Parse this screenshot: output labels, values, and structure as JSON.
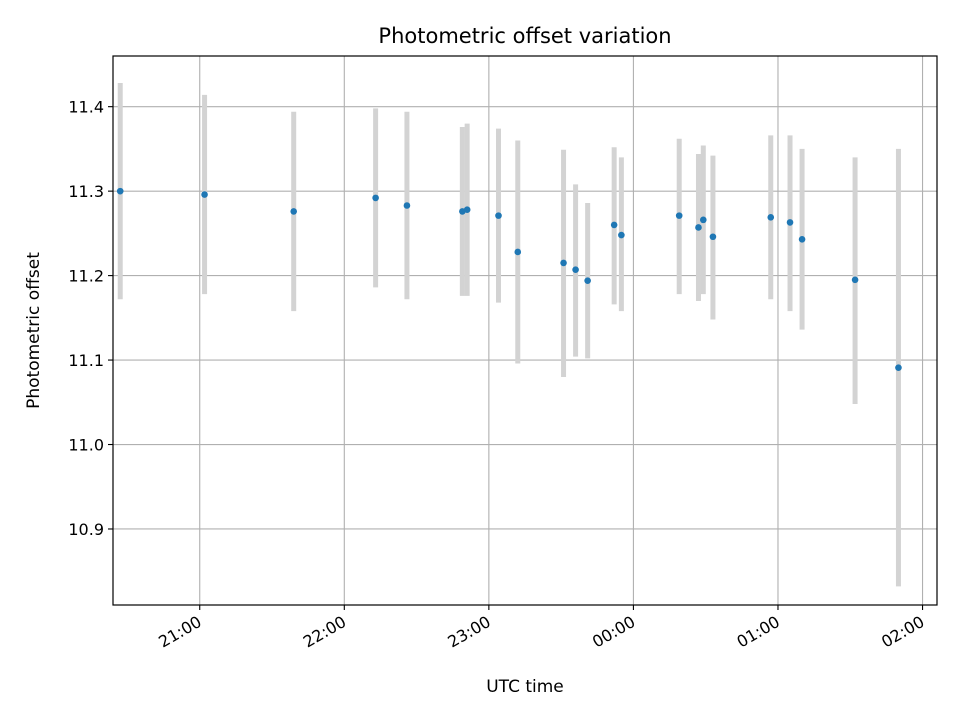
{
  "chart_data": {
    "type": "scatter",
    "title": "Photometric offset variation",
    "xlabel": "UTC time",
    "ylabel": "Photometric offset",
    "x_ticks": [
      "21:00",
      "22:00",
      "23:00",
      "00:00",
      "01:00",
      "02:00"
    ],
    "y_ticks": [
      "10.9",
      "11.0",
      "11.1",
      "11.2",
      "11.3",
      "11.4"
    ],
    "xlim": [
      "20:24",
      "02:06"
    ],
    "ylim": [
      10.81,
      11.46
    ],
    "grid": true,
    "legend": "none",
    "colors": {
      "point": "#1f77b4",
      "errorbar": "#d3d3d3",
      "grid": "#b0b0b0"
    },
    "series": [
      {
        "points": [
          {
            "x": "20:27",
            "y": 11.3,
            "lo": 11.172,
            "hi": 11.428
          },
          {
            "x": "21:02",
            "y": 11.296,
            "lo": 11.178,
            "hi": 11.414
          },
          {
            "x": "21:39",
            "y": 11.276,
            "lo": 11.158,
            "hi": 11.394
          },
          {
            "x": "22:13",
            "y": 11.292,
            "lo": 11.186,
            "hi": 11.398
          },
          {
            "x": "22:26",
            "y": 11.283,
            "lo": 11.172,
            "hi": 11.394
          },
          {
            "x": "22:49",
            "y": 11.276,
            "lo": 11.176,
            "hi": 11.376
          },
          {
            "x": "22:51",
            "y": 11.278,
            "lo": 11.176,
            "hi": 11.38
          },
          {
            "x": "23:04",
            "y": 11.271,
            "lo": 11.168,
            "hi": 11.374
          },
          {
            "x": "23:12",
            "y": 11.228,
            "lo": 11.096,
            "hi": 11.36
          },
          {
            "x": "23:31",
            "y": 11.215,
            "lo": 11.08,
            "hi": 11.349
          },
          {
            "x": "23:36",
            "y": 11.207,
            "lo": 11.104,
            "hi": 11.308
          },
          {
            "x": "23:41",
            "y": 11.194,
            "lo": 11.102,
            "hi": 11.286
          },
          {
            "x": "23:52",
            "y": 11.26,
            "lo": 11.166,
            "hi": 11.352
          },
          {
            "x": "23:55",
            "y": 11.248,
            "lo": 11.158,
            "hi": 11.34
          },
          {
            "x": "00:19",
            "y": 11.271,
            "lo": 11.178,
            "hi": 11.362
          },
          {
            "x": "00:27",
            "y": 11.257,
            "lo": 11.17,
            "hi": 11.344
          },
          {
            "x": "00:29",
            "y": 11.266,
            "lo": 11.178,
            "hi": 11.354
          },
          {
            "x": "00:33",
            "y": 11.246,
            "lo": 11.148,
            "hi": 11.342
          },
          {
            "x": "00:57",
            "y": 11.269,
            "lo": 11.172,
            "hi": 11.366
          },
          {
            "x": "01:05",
            "y": 11.263,
            "lo": 11.158,
            "hi": 11.366
          },
          {
            "x": "01:10",
            "y": 11.243,
            "lo": 11.136,
            "hi": 11.35
          },
          {
            "x": "01:32",
            "y": 11.195,
            "lo": 11.048,
            "hi": 11.34
          },
          {
            "x": "01:50",
            "y": 11.091,
            "lo": 10.832,
            "hi": 11.35
          }
        ]
      }
    ]
  }
}
